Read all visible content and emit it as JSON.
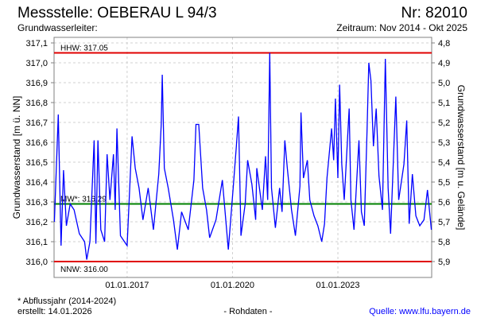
{
  "header": {
    "title": "Messstelle: OEBERAU L 94/3",
    "number": "Nr: 82010",
    "aquifer": "Grundwasserleiter:",
    "period": "Zeitraum: Nov 2014 - Okt 2025"
  },
  "footer": {
    "footnote": "* Abflussjahr (2014-2024)",
    "created": "erstellt:  14.01.2026",
    "rawdata": "- Rohdaten -",
    "source": "Quelle: www.lfu.bayern.de"
  },
  "colors": {
    "series": "#0000ff",
    "limits": "#e00000",
    "mean": "#008000",
    "grid": "#d0d0d0",
    "source_link": "#0000ff"
  },
  "chart_data": {
    "type": "line",
    "title": "Messstelle: OEBERAU L 94/3",
    "ylabel": "Grundwasserstand [m ü. NN]",
    "ylabel_right": "Grundwasserstand [m u. Gelände]",
    "xlabel": "",
    "xlim": [
      2014.92,
      2025.67
    ],
    "ylim": [
      316.0,
      317.1
    ],
    "ylim_right": [
      4.8,
      5.9
    ],
    "grid": true,
    "yticks": [
      {
        "value": 317.1,
        "label": "317,1"
      },
      {
        "value": 317.0,
        "label": "317,0"
      },
      {
        "value": 316.9,
        "label": "316,9"
      },
      {
        "value": 316.8,
        "label": "316,8"
      },
      {
        "value": 316.7,
        "label": "316,7"
      },
      {
        "value": 316.6,
        "label": "316,6"
      },
      {
        "value": 316.5,
        "label": "316,5"
      },
      {
        "value": 316.4,
        "label": "316,4"
      },
      {
        "value": 316.3,
        "label": "316,3"
      },
      {
        "value": 316.2,
        "label": "316,2"
      },
      {
        "value": 316.1,
        "label": "316,1"
      },
      {
        "value": 316.0,
        "label": "316,0"
      }
    ],
    "yticks_right": [
      "4,8",
      "4,9",
      "5,0",
      "5,1",
      "5,2",
      "5,3",
      "5,4",
      "5,5",
      "5,6",
      "5,7",
      "5,8",
      "5,9"
    ],
    "xticks": [
      {
        "value": 2017.0,
        "label": "01.01.2017"
      },
      {
        "value": 2020.0,
        "label": "01.01.2020"
      },
      {
        "value": 2023.0,
        "label": "01.01.2023"
      }
    ],
    "reference_lines": [
      {
        "name": "HHW",
        "value": 317.05,
        "label": "HHW: 317.05",
        "color": "#e00000"
      },
      {
        "name": "MW",
        "value": 316.29,
        "label": "MW*: 316.29",
        "color": "#008000"
      },
      {
        "name": "NNW",
        "value": 316.0,
        "label": "NNW: 316.00",
        "color": "#e00000"
      }
    ],
    "series": [
      {
        "name": "Grundwasserstand",
        "x": [
          2014.93,
          2015.04,
          2015.12,
          2015.19,
          2015.27,
          2015.38,
          2015.49,
          2015.64,
          2015.79,
          2015.85,
          2015.94,
          2016.06,
          2016.11,
          2016.17,
          2016.25,
          2016.36,
          2016.43,
          2016.51,
          2016.61,
          2016.66,
          2016.71,
          2016.81,
          2017.0,
          2017.14,
          2017.23,
          2017.34,
          2017.45,
          2017.6,
          2017.75,
          2017.9,
          2017.97,
          2018.0,
          2018.06,
          2018.17,
          2018.32,
          2018.43,
          2018.55,
          2018.74,
          2018.9,
          2018.96,
          2019.04,
          2019.15,
          2019.26,
          2019.35,
          2019.53,
          2019.71,
          2019.88,
          2020.02,
          2020.11,
          2020.17,
          2020.24,
          2020.36,
          2020.43,
          2020.55,
          2020.66,
          2020.69,
          2020.85,
          2020.94,
          2021.0,
          2021.06,
          2021.11,
          2021.22,
          2021.34,
          2021.41,
          2021.49,
          2021.56,
          2021.68,
          2021.79,
          2021.92,
          2021.95,
          2022.02,
          2022.13,
          2022.2,
          2022.32,
          2022.43,
          2022.54,
          2022.62,
          2022.69,
          2022.82,
          2022.88,
          2022.93,
          2023.0,
          2023.05,
          2023.11,
          2023.18,
          2023.32,
          2023.37,
          2023.46,
          2023.6,
          2023.67,
          2023.75,
          2023.83,
          2023.88,
          2023.94,
          2024.01,
          2024.09,
          2024.17,
          2024.27,
          2024.35,
          2024.43,
          2024.5,
          2024.65,
          2024.73,
          2024.88,
          2024.96,
          2025.03,
          2025.12,
          2025.22,
          2025.33,
          2025.45,
          2025.55,
          2025.66
        ],
        "y": [
          316.2,
          316.74,
          316.08,
          316.46,
          316.18,
          316.29,
          316.26,
          316.14,
          316.1,
          316.01,
          316.1,
          316.61,
          316.09,
          316.61,
          316.16,
          316.1,
          316.54,
          316.31,
          316.54,
          316.26,
          316.67,
          316.13,
          316.08,
          316.63,
          316.47,
          316.37,
          316.21,
          316.37,
          316.16,
          316.44,
          316.69,
          316.94,
          316.47,
          316.37,
          316.21,
          316.06,
          316.25,
          316.16,
          316.41,
          316.69,
          316.69,
          316.37,
          316.26,
          316.12,
          316.21,
          316.41,
          316.06,
          316.37,
          316.58,
          316.73,
          316.13,
          316.29,
          316.51,
          316.39,
          316.21,
          316.47,
          316.26,
          316.53,
          316.31,
          317.05,
          316.37,
          316.17,
          316.37,
          316.25,
          316.61,
          316.47,
          316.26,
          316.13,
          316.38,
          316.75,
          316.42,
          316.51,
          316.31,
          316.23,
          316.18,
          316.1,
          316.19,
          316.42,
          316.67,
          316.51,
          316.82,
          316.42,
          316.89,
          316.49,
          316.31,
          316.77,
          316.31,
          316.16,
          316.61,
          316.25,
          316.18,
          316.66,
          317.0,
          316.91,
          316.58,
          316.77,
          316.43,
          316.26,
          317.02,
          316.37,
          316.14,
          316.83,
          316.31,
          316.49,
          316.71,
          316.19,
          316.44,
          316.23,
          316.18,
          316.21,
          316.36,
          316.16
        ]
      }
    ]
  }
}
